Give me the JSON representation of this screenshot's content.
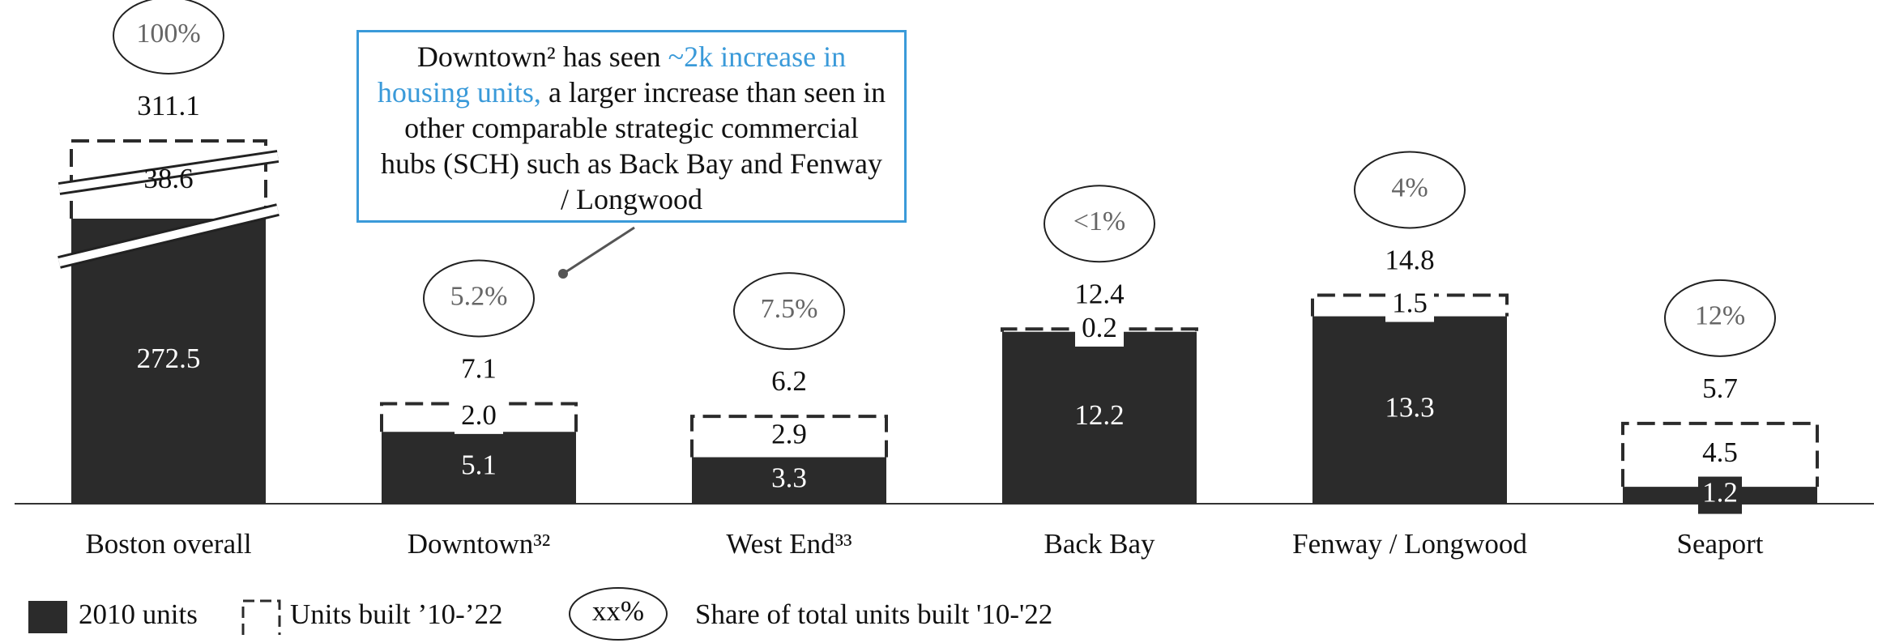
{
  "chart_data": {
    "type": "stacked_bar",
    "categories": [
      "Boston overall",
      "Downtown³²",
      "West End³³",
      "Back Bay",
      "Fenway / Longwood",
      "Seaport"
    ],
    "series": [
      {
        "name": "2010 units",
        "color": "#2b2b2b",
        "values": [
          272.5,
          5.1,
          3.3,
          12.2,
          13.3,
          1.2
        ]
      },
      {
        "name": "Units built ’10-’22",
        "color": "#2b2b2b",
        "style": "dashed",
        "values": [
          38.6,
          2.0,
          2.9,
          0.2,
          1.5,
          4.5
        ],
        "value_labels": [
          "38.6",
          "2.0",
          "2.9",
          "0.2",
          "1.5",
          "4.5"
        ]
      }
    ],
    "totals": [
      311.1,
      7.1,
      6.2,
      12.4,
      14.8,
      5.7
    ],
    "shares": [
      "100%",
      "5.2%",
      "7.5%",
      "<1%",
      "4%",
      "12%"
    ],
    "share_legend": {
      "symbol": "xx%",
      "label": "Share of total units built '10-'22"
    },
    "annotation": {
      "before": "Downtown² has seen ",
      "highlight": "~2k increase in housing units,",
      "after": " a larger increase than seen in other comparable strategic commercial hubs (SCH) such as Back Bay and Fenway / Longwood",
      "highlight_color": "#3a9ad9"
    }
  }
}
